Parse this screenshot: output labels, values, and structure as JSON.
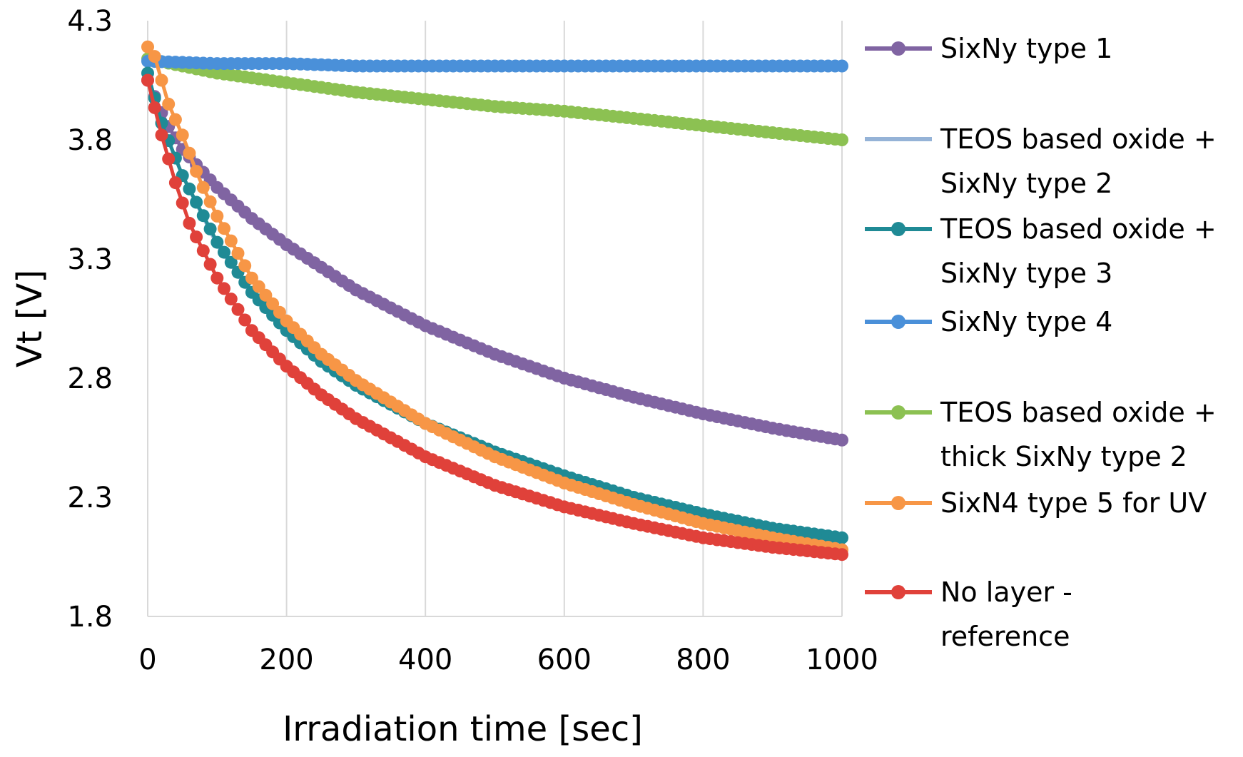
{
  "chart_data": {
    "type": "line",
    "title": "",
    "xlabel": "Irradiation time [sec]",
    "ylabel": "Vt [V]",
    "xlim": [
      0,
      1000
    ],
    "ylim": [
      1.8,
      4.3
    ],
    "xticks": [
      0,
      200,
      400,
      600,
      800,
      1000
    ],
    "yticks": [
      1.8,
      2.3,
      2.8,
      3.3,
      3.8,
      4.3
    ],
    "xtick_labels": [
      "0",
      "200",
      "400",
      "600",
      "800",
      "1000"
    ],
    "ytick_labels": [
      "1.8",
      "2.3",
      "2.8",
      "3.3",
      "3.8",
      "4.3"
    ],
    "grid": "vertical",
    "legend_position": "right",
    "series": [
      {
        "name": "SixNy type 1",
        "legend_lines": [
          "SixNy type 1"
        ],
        "color": "#8064A2",
        "x": [
          0,
          25,
          50,
          100,
          150,
          200,
          300,
          400,
          500,
          600,
          700,
          800,
          900,
          1000
        ],
        "values": [
          4.05,
          3.88,
          3.76,
          3.6,
          3.47,
          3.36,
          3.17,
          3.02,
          2.9,
          2.8,
          2.72,
          2.65,
          2.59,
          2.54
        ]
      },
      {
        "name": "TEOS based oxide + SixNy type 2",
        "legend_lines": [
          "TEOS based oxide +",
          "SixNy type 2"
        ],
        "color": "#95B3D7",
        "x": [
          0,
          20,
          50,
          100,
          150,
          200,
          250,
          300,
          400,
          500,
          600,
          700,
          800,
          900,
          1000
        ],
        "values": [
          4.08,
          3.87,
          3.65,
          3.36,
          3.15,
          2.99,
          2.86,
          2.76,
          2.6,
          2.48,
          2.38,
          2.29,
          2.22,
          2.17,
          2.13
        ]
      },
      {
        "name": "TEOS based oxide + SixNy type 3",
        "legend_lines": [
          "TEOS based oxide +",
          "SixNy type 3"
        ],
        "color": "#1F8A95",
        "x": [
          0,
          20,
          50,
          100,
          150,
          200,
          250,
          300,
          400,
          500,
          600,
          700,
          800,
          900,
          1000
        ],
        "values": [
          4.08,
          3.87,
          3.65,
          3.37,
          3.16,
          3.0,
          2.87,
          2.77,
          2.61,
          2.49,
          2.39,
          2.3,
          2.23,
          2.17,
          2.13
        ]
      },
      {
        "name": "SixNy type 4",
        "legend_lines": [
          "SixNy type 4"
        ],
        "color": "#4A90D9",
        "x": [
          0,
          100,
          200,
          300,
          400,
          500,
          600,
          700,
          800,
          900,
          1000
        ],
        "values": [
          4.13,
          4.12,
          4.12,
          4.11,
          4.11,
          4.11,
          4.11,
          4.11,
          4.11,
          4.11,
          4.11
        ]
      },
      {
        "name": "TEOS based oxide + thick SixNy type 2",
        "legend_lines": [
          "TEOS based oxide +",
          "thick SixNy type 2"
        ],
        "color": "#8CC152",
        "x": [
          0,
          100,
          200,
          300,
          400,
          500,
          600,
          700,
          800,
          900,
          1000
        ],
        "values": [
          4.14,
          4.08,
          4.04,
          4.0,
          3.97,
          3.94,
          3.92,
          3.89,
          3.86,
          3.83,
          3.8
        ]
      },
      {
        "name": "SixN4 type 5 for UV",
        "legend_lines": [
          "SixN4 type 5 for UV"
        ],
        "color": "#F79646",
        "x": [
          0,
          10,
          20,
          30,
          50,
          75,
          100,
          150,
          200,
          250,
          300,
          400,
          500,
          600,
          700,
          800,
          900,
          1000
        ],
        "values": [
          4.19,
          4.15,
          4.05,
          3.95,
          3.82,
          3.63,
          3.48,
          3.22,
          3.04,
          2.9,
          2.79,
          2.61,
          2.47,
          2.36,
          2.27,
          2.19,
          2.13,
          2.08
        ]
      },
      {
        "name": "No layer - reference",
        "legend_lines": [
          "No layer -",
          "reference"
        ],
        "color": "#E0413A",
        "x": [
          0,
          20,
          40,
          60,
          100,
          150,
          200,
          250,
          300,
          400,
          500,
          600,
          700,
          800,
          900,
          1000
        ],
        "values": [
          4.05,
          3.82,
          3.62,
          3.45,
          3.22,
          3.0,
          2.85,
          2.73,
          2.63,
          2.47,
          2.35,
          2.26,
          2.19,
          2.13,
          2.09,
          2.06
        ]
      }
    ]
  }
}
